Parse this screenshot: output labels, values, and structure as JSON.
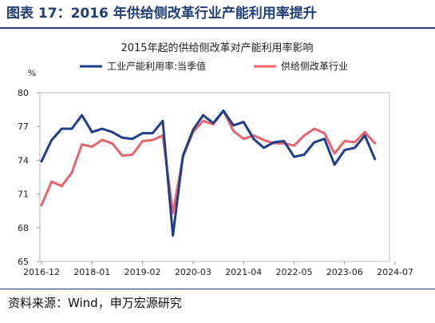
{
  "figure": {
    "title": "图表 17：2016 年供给侧改革行业产能利用率提升",
    "source": "资料来源：Wind，申万宏源研究"
  },
  "colors": {
    "title": "#1f3e7a",
    "series_1": "#1f3e8c",
    "series_2": "#e8636a"
  },
  "chart_data": {
    "type": "line",
    "title": "2015年起的供给侧改革对产能利用率影响",
    "ylabel": "%",
    "ylim": [
      65,
      80
    ],
    "yticks": [
      "65",
      "68",
      "71",
      "74",
      "77",
      "80"
    ],
    "ytick_values": [
      65,
      68,
      71,
      74,
      77,
      80
    ],
    "xticks": [
      "2016-12",
      "2018-01",
      "2019-02",
      "2020-03",
      "2021-04",
      "2022-05",
      "2023-06",
      "2024-07"
    ],
    "xtick_index": [
      0,
      5,
      10,
      15,
      20,
      25,
      30,
      35
    ],
    "legend_position": "top",
    "grid": false,
    "series": [
      {
        "name": "工业产能利用率:当季值",
        "color": "#1f3e8c",
        "values": [
          73.9,
          75.8,
          76.8,
          76.8,
          78.0,
          76.5,
          76.8,
          76.5,
          76.0,
          75.9,
          76.4,
          76.4,
          77.5,
          67.3,
          74.4,
          76.7,
          78.0,
          77.3,
          78.4,
          77.1,
          77.4,
          75.9,
          75.1,
          75.6,
          75.7,
          74.3,
          74.5,
          75.6,
          75.9,
          73.6,
          74.9,
          75.1,
          76.2,
          74.1
        ]
      },
      {
        "name": "供给侧改革行业",
        "color": "#e8636a",
        "values": [
          70.0,
          72.1,
          71.7,
          72.9,
          75.4,
          75.2,
          75.8,
          75.5,
          74.4,
          74.5,
          75.7,
          75.8,
          76.2,
          69.3,
          74.3,
          76.5,
          77.5,
          77.2,
          78.4,
          76.6,
          75.9,
          76.2,
          75.8,
          75.5,
          75.5,
          75.3,
          76.2,
          76.8,
          76.4,
          74.6,
          75.7,
          75.6,
          76.5,
          75.5
        ]
      }
    ]
  }
}
